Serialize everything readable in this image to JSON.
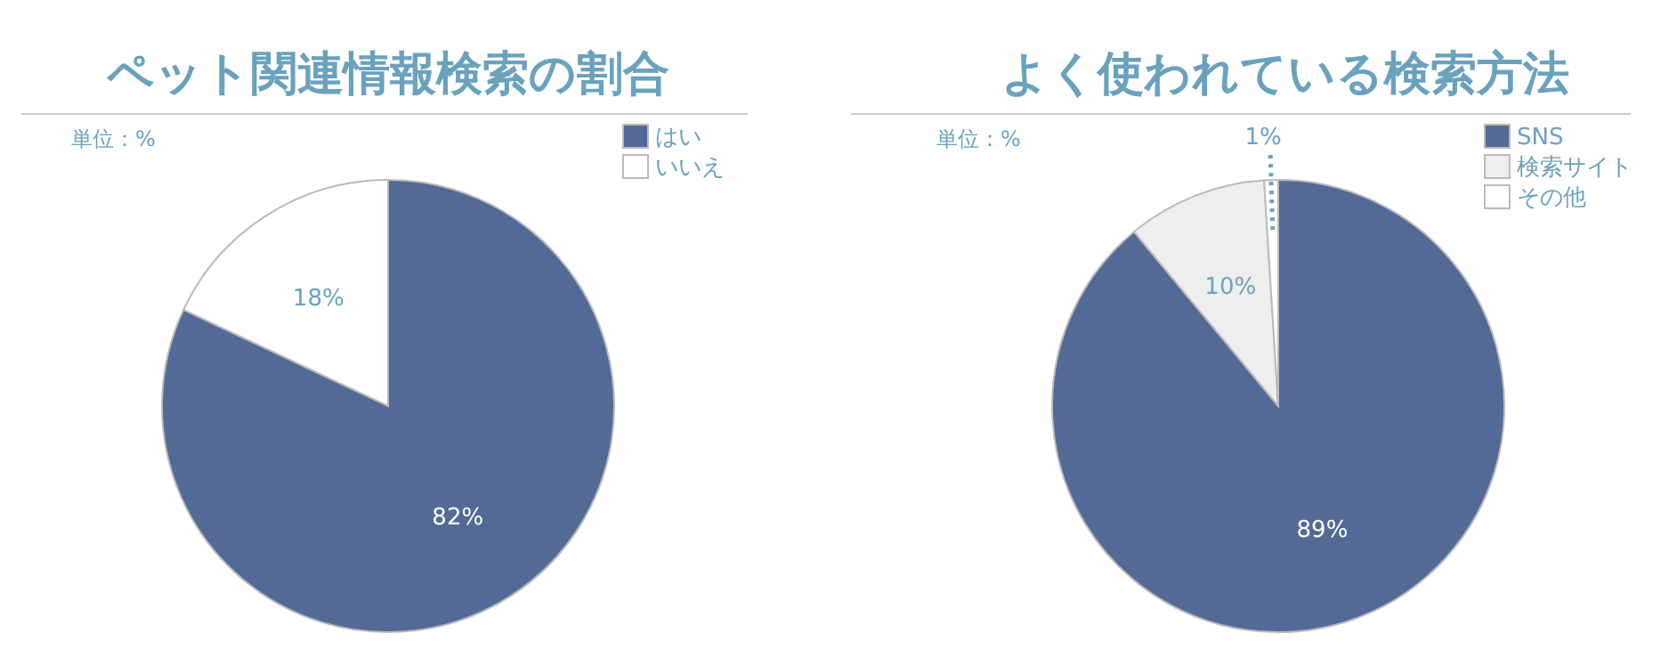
{
  "chart_data": [
    {
      "type": "pie",
      "title": "ペット関連情報検索の割合",
      "subtitle": "単位：%",
      "categories": [
        "はい",
        "いいえ"
      ],
      "values": [
        82,
        18
      ],
      "colors": [
        "#536a96",
        "#ffffff"
      ],
      "value_labels": [
        "82%",
        "18%"
      ],
      "legend": "top right"
    },
    {
      "type": "pie",
      "title": "よく使われている検索方法",
      "subtitle": "単位：%",
      "categories": [
        "SNS",
        "検索サイト",
        "その他"
      ],
      "values": [
        89,
        10,
        1
      ],
      "colors": [
        "#536a96",
        "#eeeeee",
        "#ffffff"
      ],
      "value_labels": [
        "89%",
        "10%",
        "1%"
      ],
      "legend": "top right"
    }
  ]
}
